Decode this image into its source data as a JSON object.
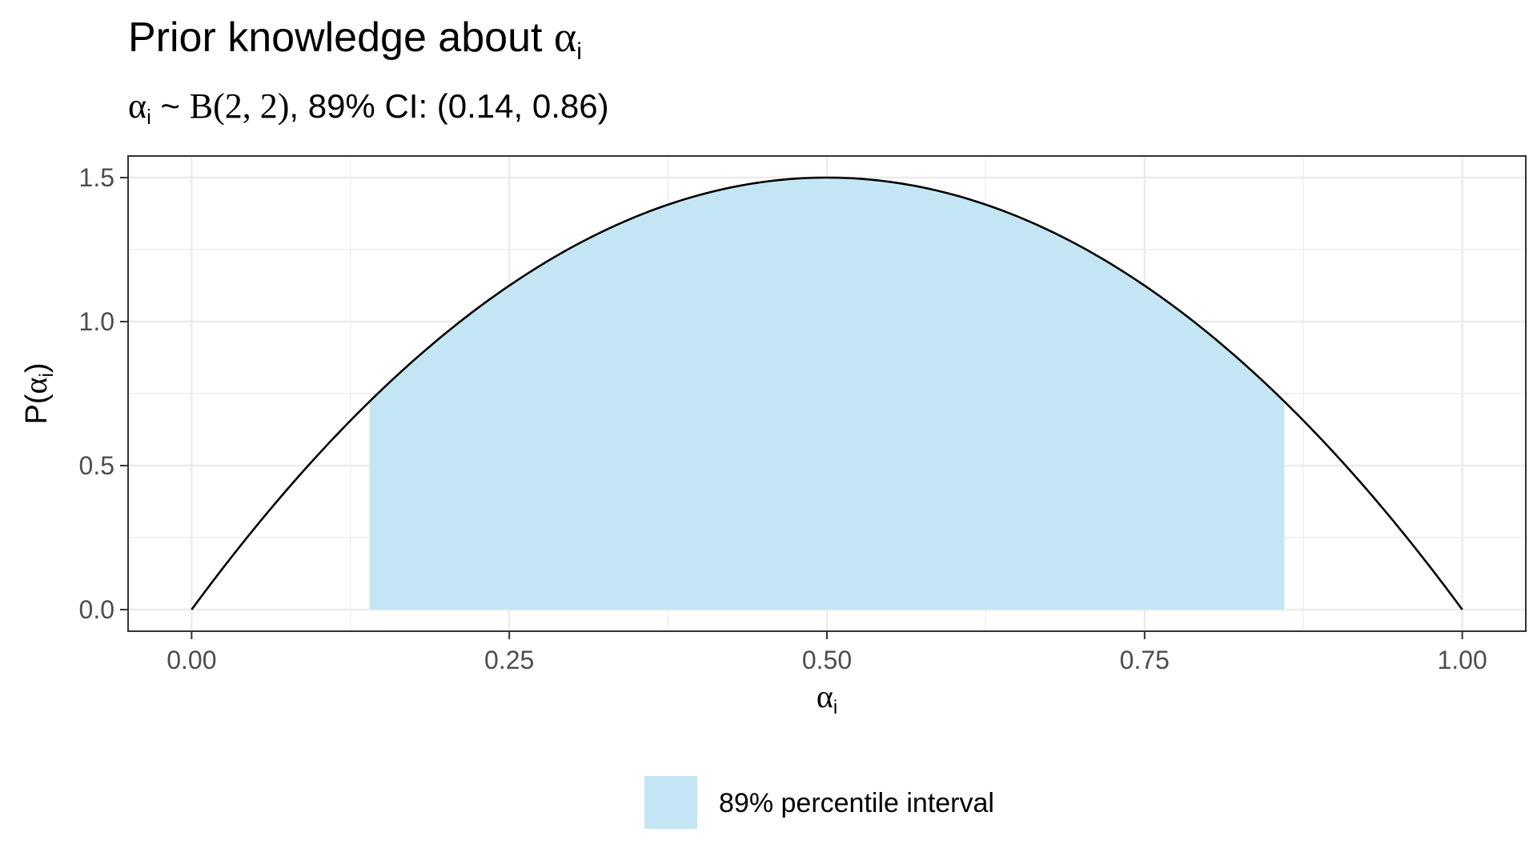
{
  "chart_data": {
    "type": "area",
    "title": {
      "text": "Prior knowledge about ",
      "symbol": "α",
      "symbol_sub": "i"
    },
    "subtitle": {
      "symbol": "α",
      "symbol_sub": "i",
      "tilde": " ~ ",
      "dist": "B(2, 2)",
      "rest": ", 89% CI: (0.14, 0.86)"
    },
    "xlabel": {
      "symbol": "α",
      "symbol_sub": "i"
    },
    "ylabel": {
      "prefix": "P(",
      "symbol": "α",
      "symbol_sub": "i",
      "suffix": ")"
    },
    "xlim": [
      -0.05,
      1.05
    ],
    "ylim": [
      -0.075,
      1.575
    ],
    "x_ticks": [
      0.0,
      0.25,
      0.5,
      0.75,
      1.0
    ],
    "x_tick_labels": [
      "0.00",
      "0.25",
      "0.50",
      "0.75",
      "1.00"
    ],
    "y_ticks": [
      0.0,
      0.5,
      1.0,
      1.5
    ],
    "y_tick_labels": [
      "0.0",
      "0.5",
      "1.0",
      "1.5"
    ],
    "grid": true,
    "series": [
      {
        "type": "line",
        "distribution": "Beta(2, 2)",
        "x": [
          0.0,
          0.05,
          0.1,
          0.15,
          0.2,
          0.25,
          0.3,
          0.35,
          0.4,
          0.45,
          0.5,
          0.55,
          0.6,
          0.65,
          0.7,
          0.75,
          0.8,
          0.85,
          0.9,
          0.95,
          1.0
        ],
        "y": [
          0.0,
          0.285,
          0.54,
          0.765,
          0.96,
          1.125,
          1.26,
          1.365,
          1.44,
          1.485,
          1.5,
          1.485,
          1.44,
          1.365,
          1.26,
          1.125,
          0.96,
          0.765,
          0.54,
          0.285,
          0.0
        ],
        "color": "#000000"
      },
      {
        "type": "area",
        "name": "89% percentile interval",
        "range": [
          0.14,
          0.86
        ],
        "color": "#c3e5f4"
      }
    ],
    "legend": {
      "position": "bottom",
      "items": [
        {
          "label": "89% percentile interval",
          "color": "#c3e5f4"
        }
      ]
    }
  }
}
